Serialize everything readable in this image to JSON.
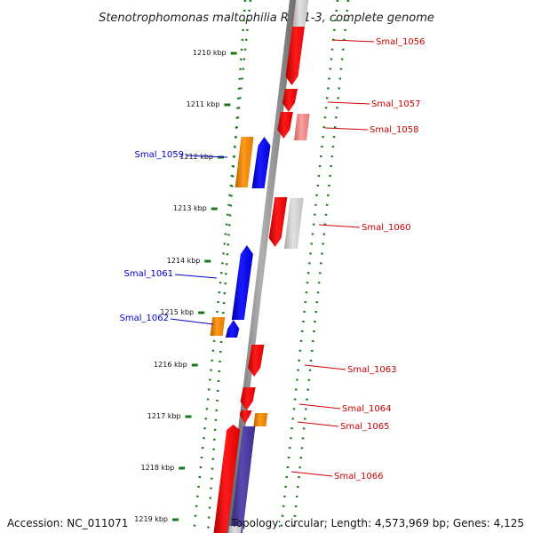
{
  "title": "Stenotrophomonas maltophilia R551-3, complete genome",
  "footer": {
    "accession": "Accession: NC_011071",
    "topology": "Topology: circular; Length: 4,573,969 bp; Genes: 4,125"
  },
  "colors": {
    "forward_gene": "#ff0000",
    "reverse_gene": "#0000ff",
    "orange_gene": "#ff8c00",
    "gray_gene": "#c8c8c8",
    "pink_gene": "#f08080",
    "purple_gene": "#4b3c96",
    "backbone": "#808080",
    "tick_color": "#1a7a1a",
    "forward_label": "#cc0000",
    "reverse_label": "#0000cc"
  },
  "ticks": [
    {
      "label": "1210 kbp"
    },
    {
      "label": "1211 kbp"
    },
    {
      "label": "1212 kbp"
    },
    {
      "label": "1213 kbp"
    },
    {
      "label": "1214 kbp"
    },
    {
      "label": "1215 kbp"
    },
    {
      "label": "1216 kbp"
    },
    {
      "label": "1217 kbp"
    },
    {
      "label": "1218 kbp"
    },
    {
      "label": "1219 kbp"
    }
  ],
  "genes": [
    {
      "label": "Smal_1056",
      "strand": "forward",
      "color": "forward_gene"
    },
    {
      "label": "Smal_1057",
      "strand": "forward",
      "color": "forward_gene"
    },
    {
      "label": "Smal_1058",
      "strand": "forward",
      "color": "pink_gene"
    },
    {
      "label": "Smal_1059",
      "strand": "reverse",
      "color": "reverse_gene"
    },
    {
      "label": "Smal_1060",
      "strand": "forward",
      "color": "forward_gene"
    },
    {
      "label": "Smal_1061",
      "strand": "reverse",
      "color": "reverse_gene"
    },
    {
      "label": "Smal_1062",
      "strand": "reverse",
      "color": "reverse_gene"
    },
    {
      "label": "Smal_1063",
      "strand": "forward",
      "color": "forward_gene"
    },
    {
      "label": "Smal_1064",
      "strand": "forward",
      "color": "forward_gene"
    },
    {
      "label": "Smal_1065",
      "strand": "forward",
      "color": "orange_gene"
    },
    {
      "label": "Smal_1066",
      "strand": "forward",
      "color": "forward_gene"
    }
  ]
}
